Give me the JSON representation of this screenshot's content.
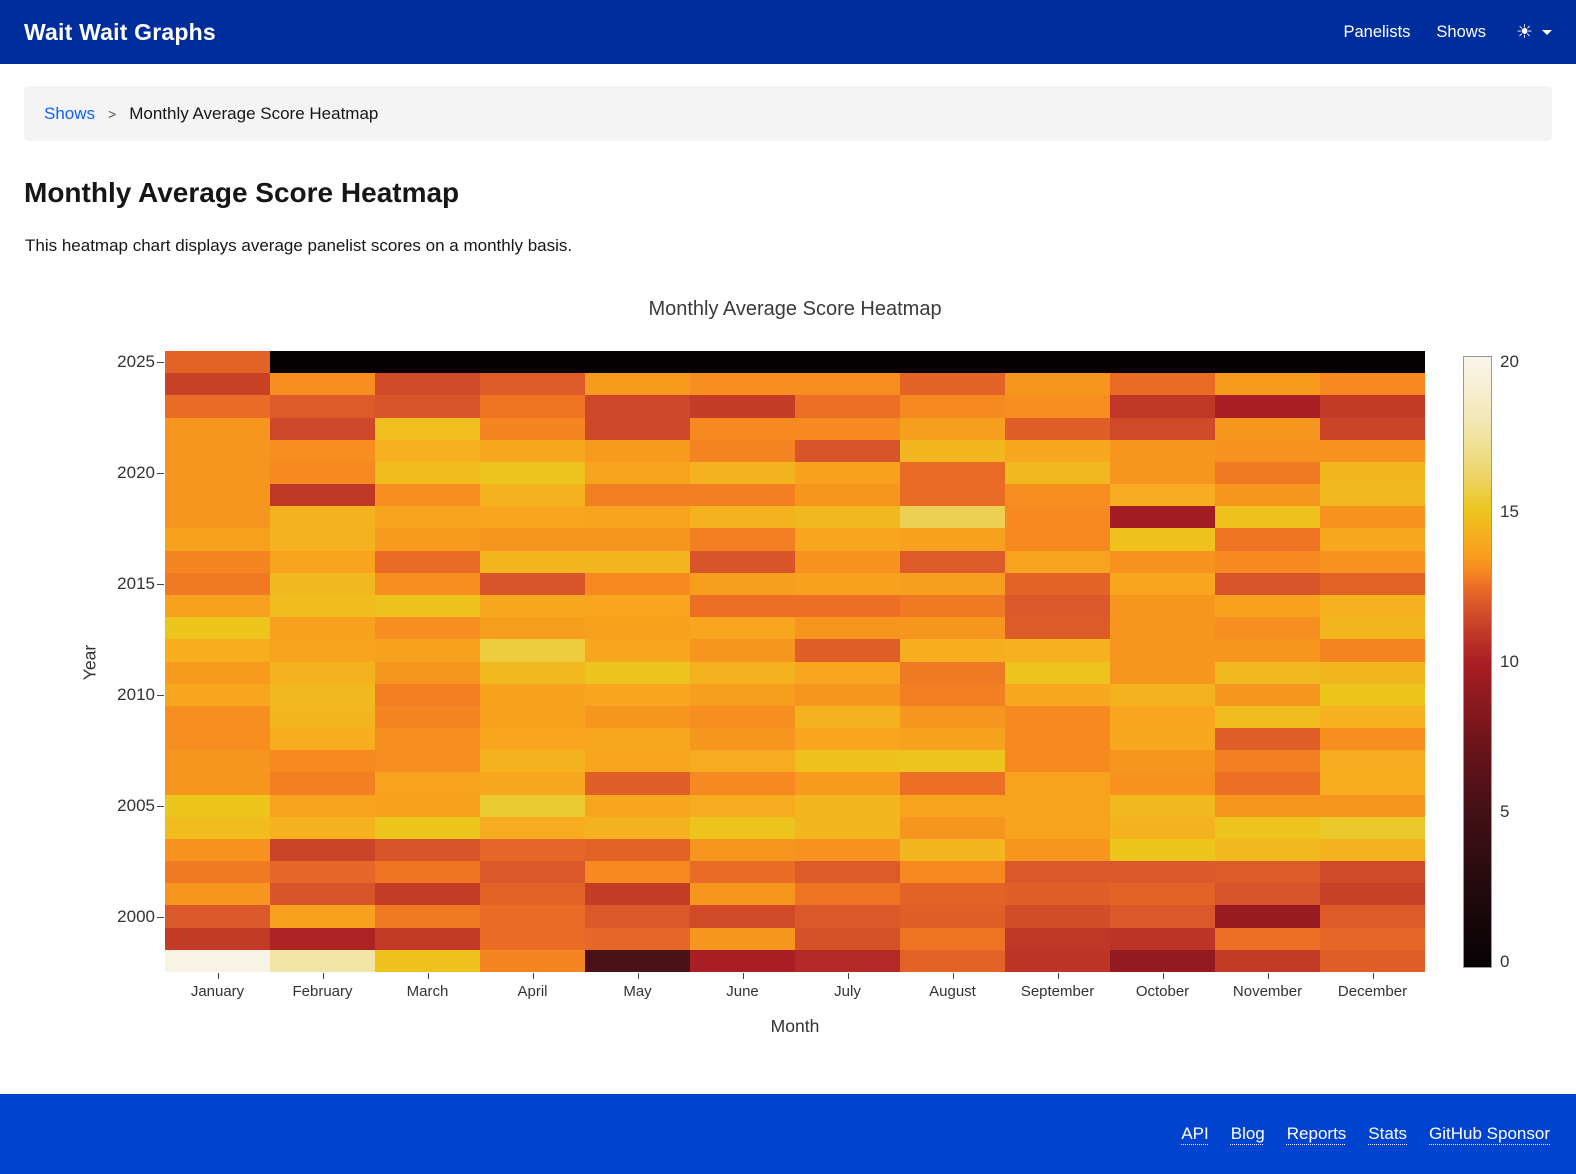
{
  "header": {
    "brand": "Wait Wait Graphs",
    "nav": {
      "panelists": "Panelists",
      "shows": "Shows"
    },
    "colors": {
      "header_bg": "#002d9c",
      "footer_bg": "#0043ce",
      "link_blue": "#0f62fe"
    }
  },
  "breadcrumb": {
    "shows_link": "Shows",
    "separator": ">",
    "current": "Monthly Average Score Heatmap"
  },
  "page": {
    "title": "Monthly Average Score Heatmap",
    "description": "This heatmap chart displays average panelist scores on a monthly basis."
  },
  "chart_data": {
    "type": "heatmap",
    "title": "Monthly Average Score Heatmap",
    "xlabel": "Month",
    "ylabel": "Year",
    "grid": false,
    "legend_position": "right",
    "x_categories": [
      "January",
      "February",
      "March",
      "April",
      "May",
      "June",
      "July",
      "August",
      "September",
      "October",
      "November",
      "December"
    ],
    "y_categories": [
      2025,
      2024,
      2023,
      2022,
      2021,
      2020,
      2019,
      2018,
      2017,
      2016,
      2015,
      2014,
      2013,
      2012,
      2011,
      2010,
      2009,
      2008,
      2007,
      2006,
      2005,
      2004,
      2003,
      2002,
      2001,
      2000,
      1999,
      1998
    ],
    "y_axis_ticks": [
      2025,
      2020,
      2015,
      2010,
      2005,
      2000
    ],
    "values": [
      [
        12.2,
        0,
        0,
        0,
        0,
        0,
        0,
        0,
        0,
        0,
        0,
        0
      ],
      [
        11.2,
        13.1,
        11.5,
        12.0,
        13.4,
        13.1,
        13.1,
        12.2,
        13.3,
        12.4,
        13.4,
        13.0
      ],
      [
        12.4,
        12.0,
        11.8,
        12.6,
        11.4,
        11.1,
        12.5,
        13.0,
        13.1,
        10.9,
        10.0,
        11.0
      ],
      [
        13.3,
        11.4,
        14.7,
        12.9,
        11.4,
        13.0,
        13.0,
        13.5,
        12.1,
        11.5,
        13.3,
        11.3
      ],
      [
        13.3,
        13.1,
        14.2,
        13.9,
        13.4,
        12.9,
        11.8,
        14.4,
        13.9,
        13.3,
        13.2,
        13.2
      ],
      [
        13.3,
        13.0,
        14.6,
        14.9,
        13.7,
        14.3,
        13.6,
        12.4,
        14.5,
        13.3,
        12.7,
        14.4
      ],
      [
        13.3,
        10.9,
        13.1,
        14.3,
        12.8,
        12.8,
        13.3,
        12.4,
        13.1,
        14.0,
        13.3,
        14.5
      ],
      [
        13.3,
        14.3,
        13.7,
        13.8,
        13.7,
        14.3,
        14.5,
        15.8,
        13.0,
        9.7,
        14.8,
        13.2
      ],
      [
        13.6,
        14.3,
        13.4,
        13.3,
        13.3,
        12.8,
        13.8,
        13.6,
        13.0,
        14.8,
        12.6,
        13.9
      ],
      [
        12.9,
        13.7,
        12.4,
        14.4,
        14.4,
        11.8,
        13.2,
        12.0,
        13.7,
        13.2,
        13.0,
        13.2
      ],
      [
        12.7,
        14.5,
        13.1,
        11.8,
        13.0,
        13.5,
        13.6,
        13.5,
        12.2,
        13.8,
        11.8,
        12.2
      ],
      [
        13.6,
        14.6,
        14.8,
        13.9,
        13.8,
        12.5,
        12.5,
        12.7,
        11.9,
        13.3,
        13.6,
        14.2
      ],
      [
        15.0,
        13.6,
        13.1,
        13.5,
        13.6,
        13.8,
        13.3,
        13.3,
        12.0,
        13.3,
        13.1,
        14.4
      ],
      [
        14.1,
        13.7,
        13.6,
        15.5,
        13.8,
        13.3,
        12.1,
        14.1,
        14.2,
        13.3,
        13.3,
        12.9
      ],
      [
        13.4,
        14.3,
        13.3,
        14.5,
        14.9,
        14.3,
        13.8,
        12.7,
        14.9,
        13.3,
        14.5,
        14.4
      ],
      [
        13.8,
        14.5,
        12.8,
        13.6,
        13.8,
        13.5,
        13.3,
        12.8,
        13.9,
        14.3,
        13.3,
        15.0
      ],
      [
        13.1,
        14.4,
        12.9,
        13.6,
        13.3,
        13.1,
        14.3,
        13.3,
        13.0,
        13.8,
        14.6,
        14.2
      ],
      [
        13.1,
        14.1,
        13.1,
        13.8,
        13.9,
        13.3,
        13.8,
        13.6,
        13.0,
        13.9,
        12.1,
        13.1
      ],
      [
        13.3,
        13.0,
        13.1,
        14.3,
        13.8,
        14.0,
        14.8,
        14.9,
        13.0,
        13.3,
        12.8,
        14.0
      ],
      [
        13.3,
        12.8,
        13.7,
        13.9,
        12.1,
        13.0,
        13.4,
        12.5,
        13.7,
        13.2,
        12.5,
        14.1
      ],
      [
        15.0,
        13.7,
        13.6,
        15.3,
        13.8,
        14.0,
        14.4,
        13.7,
        13.7,
        14.5,
        13.3,
        13.3
      ],
      [
        14.6,
        14.3,
        15.0,
        14.0,
        14.3,
        14.9,
        14.4,
        13.3,
        13.7,
        14.3,
        14.9,
        15.2
      ],
      [
        13.2,
        11.3,
        11.8,
        12.3,
        12.2,
        13.3,
        13.2,
        14.4,
        13.3,
        15.0,
        14.5,
        14.3
      ],
      [
        12.7,
        12.3,
        12.6,
        11.9,
        13.0,
        12.4,
        12.0,
        13.0,
        11.9,
        11.9,
        12.0,
        11.5
      ],
      [
        13.3,
        11.8,
        11.1,
        12.2,
        11.1,
        13.3,
        12.6,
        12.2,
        12.1,
        12.2,
        11.8,
        11.2
      ],
      [
        11.9,
        13.6,
        12.7,
        12.4,
        11.9,
        11.5,
        11.9,
        12.1,
        11.6,
        11.9,
        9.2,
        12.0
      ],
      [
        11.0,
        10.2,
        11.0,
        12.4,
        12.3,
        13.3,
        11.7,
        12.6,
        10.9,
        10.8,
        12.5,
        12.3
      ],
      [
        19.8,
        17.5,
        14.8,
        12.9,
        5.5,
        10.0,
        10.4,
        12.2,
        10.8,
        9.0,
        11.0,
        12.1
      ]
    ],
    "colorbar": {
      "min": 0,
      "max": 20,
      "ticks": [
        20,
        15,
        10,
        5,
        0
      ],
      "colorscale": [
        [
          0.0,
          "#060204"
        ],
        [
          0.125,
          "#220a0d"
        ],
        [
          0.25,
          "#411016"
        ],
        [
          0.375,
          "#70151a"
        ],
        [
          0.5,
          "#a91e24"
        ],
        [
          0.55,
          "#c33a27"
        ],
        [
          0.6,
          "#dd5b29"
        ],
        [
          0.625,
          "#ec6f25"
        ],
        [
          0.65,
          "#f68a20"
        ],
        [
          0.675,
          "#f89e1e"
        ],
        [
          0.7,
          "#f7ab1e"
        ],
        [
          0.725,
          "#f2b91e"
        ],
        [
          0.75,
          "#ecc61d"
        ],
        [
          0.8,
          "#edd360"
        ],
        [
          0.85,
          "#f0df91"
        ],
        [
          0.9,
          "#f3e8b8"
        ],
        [
          0.95,
          "#f6efd3"
        ],
        [
          1.0,
          "#f9f5ea"
        ]
      ]
    }
  },
  "footer": {
    "links": [
      "API",
      "Blog",
      "Reports",
      "Stats",
      "GitHub Sponsor"
    ]
  }
}
